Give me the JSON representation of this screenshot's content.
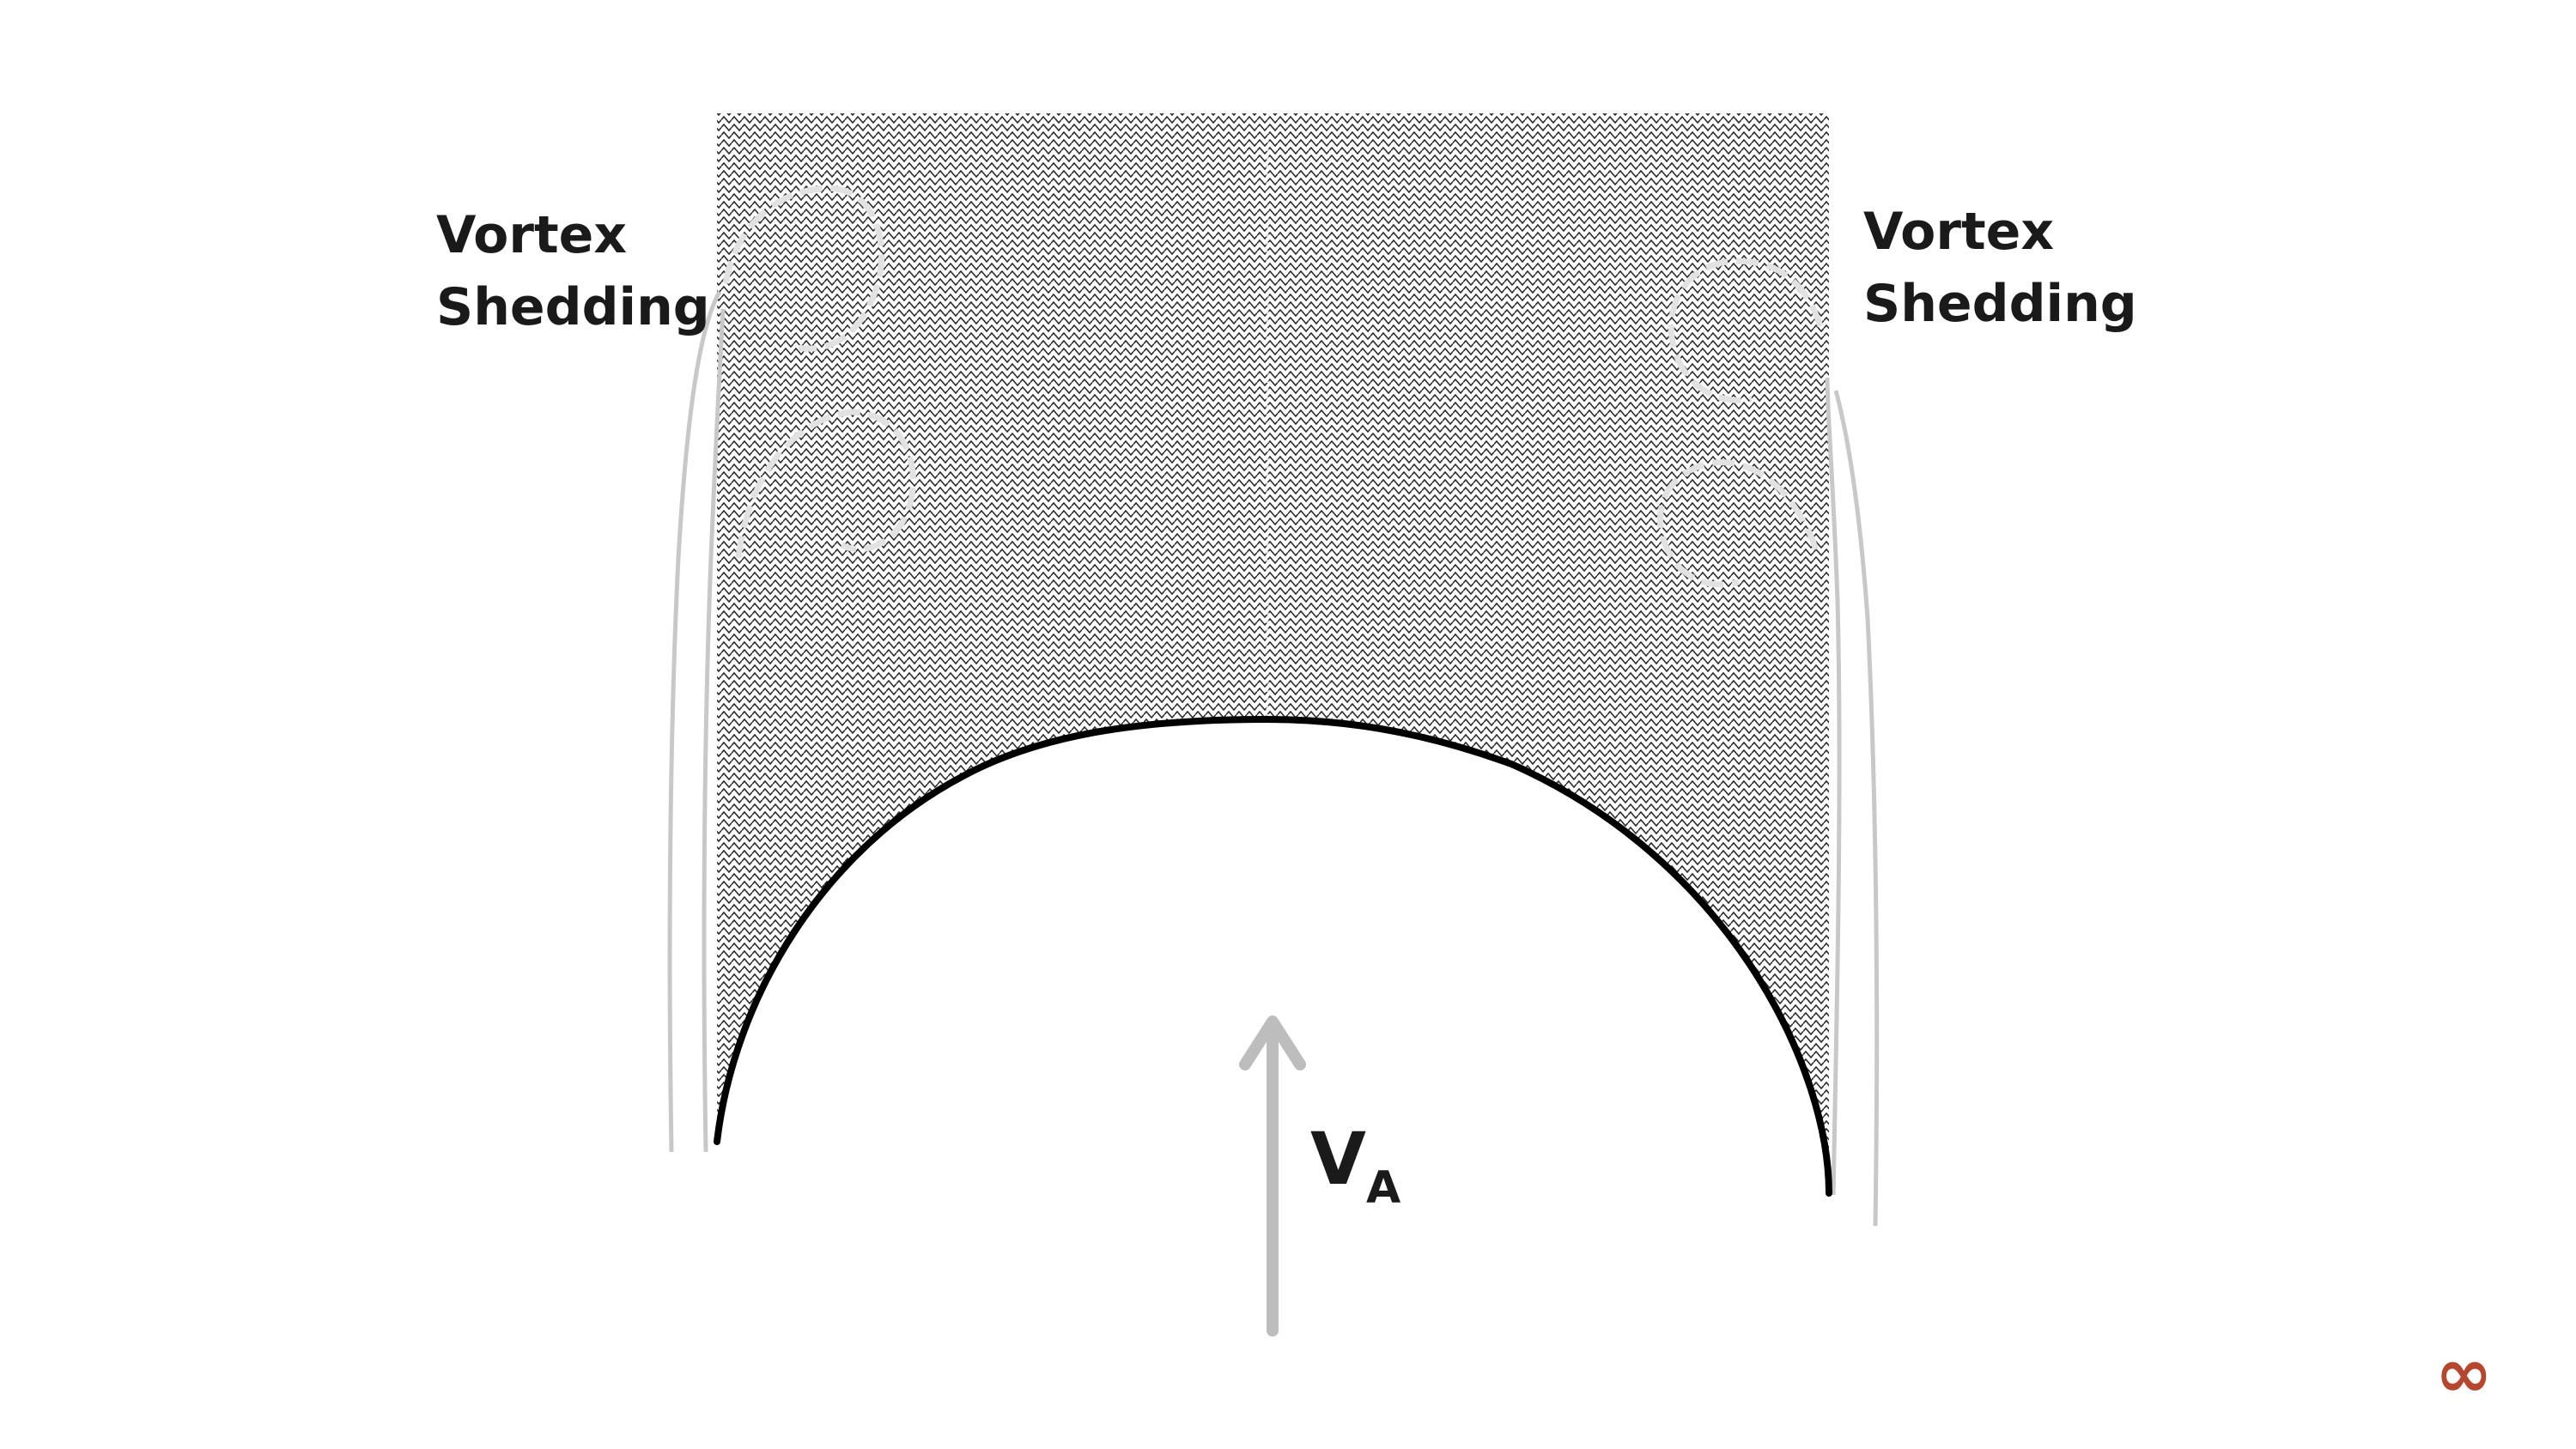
{
  "diagram": {
    "labels": {
      "left": {
        "line1": "Vortex",
        "line2": "Shedding"
      },
      "right": {
        "line1": "Vortex",
        "line2": "Shedding"
      }
    },
    "velocity": {
      "symbol": "V",
      "subscript": "A"
    }
  },
  "colors": {
    "hatch": "#2a2a2a",
    "outline": "#000000",
    "streamline": "#c8c8c8",
    "vortex": "#e2e2e2",
    "arrow": "#bdbdbd",
    "logo": "#b5472e"
  },
  "icons": {
    "corner_logo": "infinity-icon"
  }
}
